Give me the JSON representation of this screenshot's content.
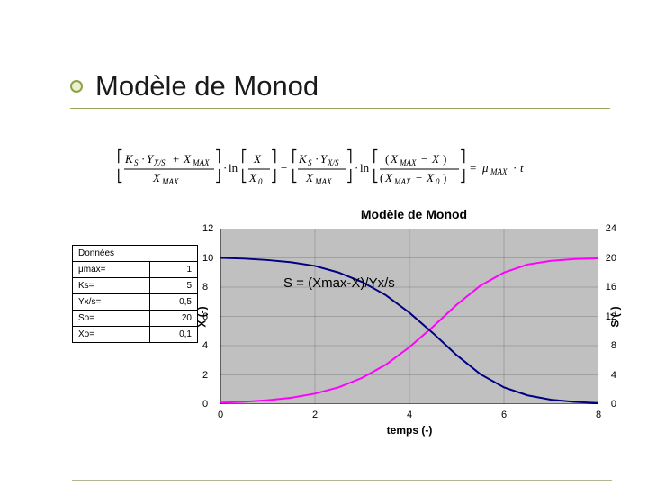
{
  "title": "Modèle de Monod",
  "chart": {
    "title": "Modèle de Monod",
    "type": "line",
    "xlabel": "temps (-)",
    "ylabel_left": "X (-)",
    "ylabel_right": "S (-)",
    "xlim": [
      0,
      8
    ],
    "ylim_left": [
      0,
      12
    ],
    "ylim_right": [
      0,
      24
    ],
    "xtick_step": 2,
    "ytick_left_step": 2,
    "ytick_right_step": 4,
    "xticks": [
      "0",
      "2",
      "4",
      "6",
      "8"
    ],
    "yticks_left": [
      "0",
      "2",
      "4",
      "6",
      "8",
      "10",
      "12"
    ],
    "yticks_right": [
      "0",
      "4",
      "8",
      "12",
      "16",
      "20",
      "24"
    ],
    "grid_color": "#808080",
    "background_color": "#c0c0c0",
    "series": [
      {
        "name": "X",
        "color": "#ff00ff",
        "width": 2,
        "points": [
          [
            0,
            0.1
          ],
          [
            0.5,
            0.16
          ],
          [
            1,
            0.27
          ],
          [
            1.5,
            0.44
          ],
          [
            2,
            0.72
          ],
          [
            2.5,
            1.15
          ],
          [
            3,
            1.8
          ],
          [
            3.5,
            2.7
          ],
          [
            4,
            3.9
          ],
          [
            4.5,
            5.3
          ],
          [
            5,
            6.8
          ],
          [
            5.5,
            8.1
          ],
          [
            6,
            9.0
          ],
          [
            6.5,
            9.55
          ],
          [
            7,
            9.8
          ],
          [
            7.5,
            9.92
          ],
          [
            8,
            9.97
          ]
        ]
      },
      {
        "name": "S",
        "color": "#000080",
        "width": 2,
        "points": [
          [
            0,
            20
          ],
          [
            0.5,
            19.9
          ],
          [
            1,
            19.7
          ],
          [
            1.5,
            19.4
          ],
          [
            2,
            18.9
          ],
          [
            2.5,
            18.0
          ],
          [
            3,
            16.7
          ],
          [
            3.5,
            14.9
          ],
          [
            4,
            12.5
          ],
          [
            4.5,
            9.7
          ],
          [
            5,
            6.7
          ],
          [
            5.5,
            4.1
          ],
          [
            6,
            2.3
          ],
          [
            6.5,
            1.2
          ],
          [
            7,
            0.6
          ],
          [
            7.5,
            0.3
          ],
          [
            8,
            0.15
          ]
        ]
      }
    ],
    "annotation": "S = (Xmax-X)/Yx/s"
  },
  "data_table": {
    "header": "Données",
    "rows": [
      {
        "label": "μmax=",
        "value": "1"
      },
      {
        "label": "Ks=",
        "value": "5"
      },
      {
        "label": "Yx/s=",
        "value": "0,5"
      },
      {
        "label": "So=",
        "value": "20"
      },
      {
        "label": "Xo=",
        "value": "0,1"
      }
    ]
  }
}
